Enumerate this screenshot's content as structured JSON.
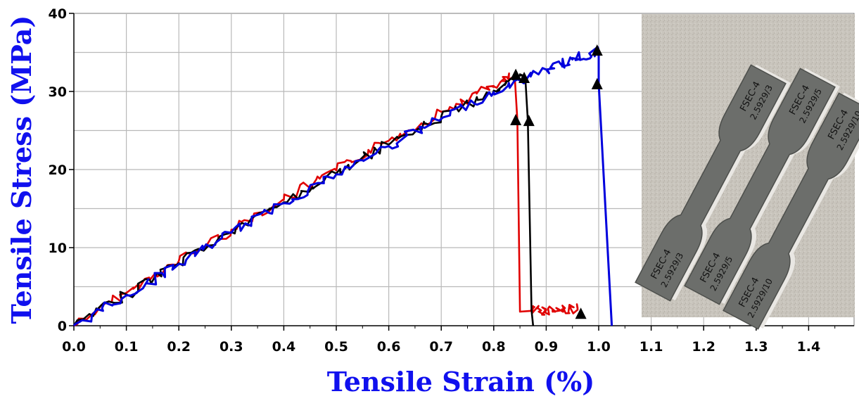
{
  "chart_data": {
    "type": "line",
    "xlabel": "Tensile Strain (%)",
    "ylabel": "Tensile Stress (MPa)",
    "xlim": [
      0,
      1.5
    ],
    "ylim": [
      0,
      40
    ],
    "x_ticks": [
      "0.0",
      "0.1",
      "0.2",
      "0.3",
      "0.4",
      "0.5",
      "0.6",
      "0.7",
      "0.8",
      "0.9",
      "1.0",
      "1.1",
      "1.2",
      "1.3",
      "1.4"
    ],
    "y_ticks": [
      "0",
      "10",
      "20",
      "30",
      "40"
    ],
    "grid": true,
    "legend": "none",
    "series": [
      {
        "color": "#e00000",
        "x": [
          0,
          0.1,
          0.2,
          0.3,
          0.4,
          0.5,
          0.6,
          0.7,
          0.8,
          0.84,
          0.845,
          0.85,
          0.87,
          0.9,
          0.93,
          0.96
        ],
        "y": [
          0,
          4.2,
          8.3,
          12.3,
          16.1,
          19.9,
          23.7,
          27.4,
          30.7,
          32.0,
          26.3,
          1.8,
          1.9,
          2.0,
          2.1,
          2.2
        ]
      },
      {
        "color": "#000000",
        "x": [
          0,
          0.1,
          0.2,
          0.3,
          0.4,
          0.5,
          0.6,
          0.7,
          0.8,
          0.86,
          0.865,
          0.872,
          0.875
        ],
        "y": [
          0,
          4.0,
          8.0,
          12.0,
          15.8,
          19.5,
          23.2,
          26.8,
          30.1,
          31.9,
          26.2,
          2.0,
          0
        ]
      },
      {
        "color": "#0000dd",
        "x": [
          0,
          0.1,
          0.2,
          0.3,
          0.4,
          0.5,
          0.6,
          0.7,
          0.8,
          0.9,
          0.95,
          1.0,
          1.0,
          1.025
        ],
        "y": [
          0,
          3.9,
          7.9,
          11.9,
          15.7,
          19.4,
          23.0,
          26.5,
          29.9,
          32.8,
          34.1,
          35.2,
          31.0,
          0
        ]
      }
    ],
    "markers": [
      {
        "x": 0.842,
        "y": 32.2
      },
      {
        "x": 0.842,
        "y": 26.4
      },
      {
        "x": 0.858,
        "y": 31.8
      },
      {
        "x": 0.867,
        "y": 26.3
      },
      {
        "x": 0.966,
        "y": 1.6
      },
      {
        "x": 0.997,
        "y": 35.3
      },
      {
        "x": 0.997,
        "y": 31.0
      }
    ]
  },
  "photo": {
    "specimens": [
      {
        "label_top": "FSEC-4",
        "label_bottom": "2.5929/3"
      },
      {
        "label_top": "FSEC-4",
        "label_bottom": "2.5929/5"
      },
      {
        "label_top": "FSEC-4",
        "label_bottom": "2.5929/10"
      }
    ]
  }
}
